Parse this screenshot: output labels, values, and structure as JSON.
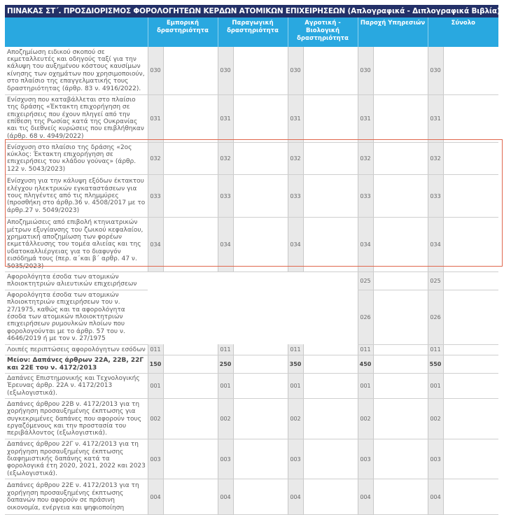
{
  "title": "ΠΙΝΑΚΑΣ ΣΤ΄. ΠΡΟΣΔΙΟΡΙΣΜΟΣ ΦΟΡΟΛΟΓΗΤΕΩΝ ΚΕΡΔΩΝ ΑΤΟΜΙΚΩΝ ΕΠΙΧΕΙΡΗΣΕΩΝ (Απλογραφικά - Διπλογραφικά Βιβλία)",
  "columns": [
    "Εμπορική δραστηριότητα",
    "Παραγωγική δραστηριότητα",
    "Αγροτική - Βιολογική δραστηριότητα",
    "Παροχή Υπηρεσιών",
    "Σύνολο"
  ],
  "rows": [
    {
      "label": "Αποζημίωση ειδικού σκοπού σε εκμεταλλευτές και οδηγούς ταξί για την κάλυψη του αυξημένου κόστους καυσίμων κίνησης των οχημάτων που χρησιμοποιούν, στο πλαίσιο της επαγγελματικής τους δραστηριότητας (άρθρ. 83 ν. 4916/2022).",
      "codes": [
        "030",
        "030",
        "030",
        "030",
        "030"
      ]
    },
    {
      "label": "Ενίσχυση που καταβάλλεται στο πλαίσιο της δράσης «Έκτακτη επιχορήγηση σε επιχειρήσεις που έχουν πληγεί από την επίθεση της Ρωσίας κατά της Ουκρανίας και τις διεθνείς κυρώσεις που επιβλήθηκαν (άρθρ. 68 ν. 4949/2022)",
      "codes": [
        "031",
        "031",
        "031",
        "031",
        "031"
      ]
    },
    {
      "label": "Ενίσχυση στο πλαίσιο της δράσης «2ος κύκλος: Έκτακτη επιχορήγηση σε επιχειρήσεις του κλάδου γούνας» (άρθρ. 122 ν. 5043/2023)",
      "codes": [
        "032",
        "032",
        "032",
        "032",
        "032"
      ]
    },
    {
      "label": "Ενίσχυση για την κάλυψη εξόδων έκτακτου ελέγχου ηλεκτρικών εγκαταστάσεων για τους πληγέντες από τις πλημμύρες (προσθήκη στο άρθρ.36 ν. 4508/2017 με το άρθρ.27 ν. 5049/2023)",
      "codes": [
        "033",
        "033",
        "033",
        "033",
        "033"
      ]
    },
    {
      "label": "Αποζημιώσεις από επιβολή κτηνιατρικών μέτρων εξυγίανσης του ζωικού κεφαλαίου, χρηματική αποζημίωση των φορέων εκμετάλλευσης του τομέα αλιείας και της υδατοκαλλιέργειας για το διαφυγόν εισόδημά τους (περ. α΄και β΄ αρθρ. 47 ν. 5035/2023)",
      "codes": [
        "034",
        "034",
        "034",
        "034",
        "034"
      ]
    },
    {
      "label": "Αφορολόγητα έσοδα των ατομικών πλοιοκτητριών αλιευτικών επιχειρήσεων",
      "codes": [
        "",
        "",
        "",
        "025",
        "025"
      ]
    },
    {
      "label": "Αφορολόγητα έσοδα των ατομικών πλοιοκτητριών επιχειρήσεων του ν. 27/1975, καθώς και τα αφορολόγητα έσοδα των ατομικών πλοιοκτητριών επιχειρήσεων ρυμουλκών πλοίων που φορολογούνται με το άρθρ. 57 του ν. 4646/2019 ή με τον ν. 27/1975",
      "codes": [
        "",
        "",
        "",
        "026",
        "026"
      ]
    },
    {
      "label": "Λοιπές περιπτώσεις αφορολόγητων εσόδων",
      "codes": [
        "011",
        "011",
        "011",
        "011",
        "011"
      ]
    },
    {
      "label": "Μείον: Δαπάνες άρθρων 22Α, 22Β, 22Γ και 22Ε του ν. 4172/2013",
      "codes": [
        "150",
        "250",
        "350",
        "450",
        "550"
      ],
      "bold": true
    },
    {
      "label": "Δαπάνες Επιστημονικής και Τεχνολογικής Έρευνας άρθρ. 22Α ν. 4172/2013 (εξωλογιστικά).",
      "codes": [
        "001",
        "001",
        "001",
        "001",
        "001"
      ]
    },
    {
      "label": "Δαπάνες άρθρου 22Β ν. 4172/2013 για τη χορήγηση προσαυξημένης έκπτωσης για συγκεκριμένες δαπάνες που αφορούν τους εργαζόμενους και την προστασία του περιβάλλοντος (εξωλογιστικά).",
      "codes": [
        "002",
        "002",
        "002",
        "002",
        "002"
      ]
    },
    {
      "label": "Δαπάνες άρθρου 22Γ ν. 4172/2013 για τη χορήγηση προσαυξημένης έκπτωσης διαφημιστικής δαπάνης κατά τα φορολογικά έτη 2020, 2021, 2022 και 2023 (εξωλογιστικά).",
      "codes": [
        "003",
        "003",
        "003",
        "003",
        "003"
      ]
    },
    {
      "label": "Δαπάνες άρθρου 22Ε ν. 4172/2013 για τη χορήγηση προσαυξημένης έκπτωσης δαπανών που αφορούν σε πράσινη οικονομία, ενέργεια και ψηφιοποίηση",
      "codes": [
        "004",
        "004",
        "004",
        "004",
        "004"
      ]
    }
  ],
  "colors": {
    "title_bg": "#233067",
    "header_bg": "#29a8e0",
    "highlight_border": "#e0674d",
    "code_bg": "#e9e9e9"
  }
}
